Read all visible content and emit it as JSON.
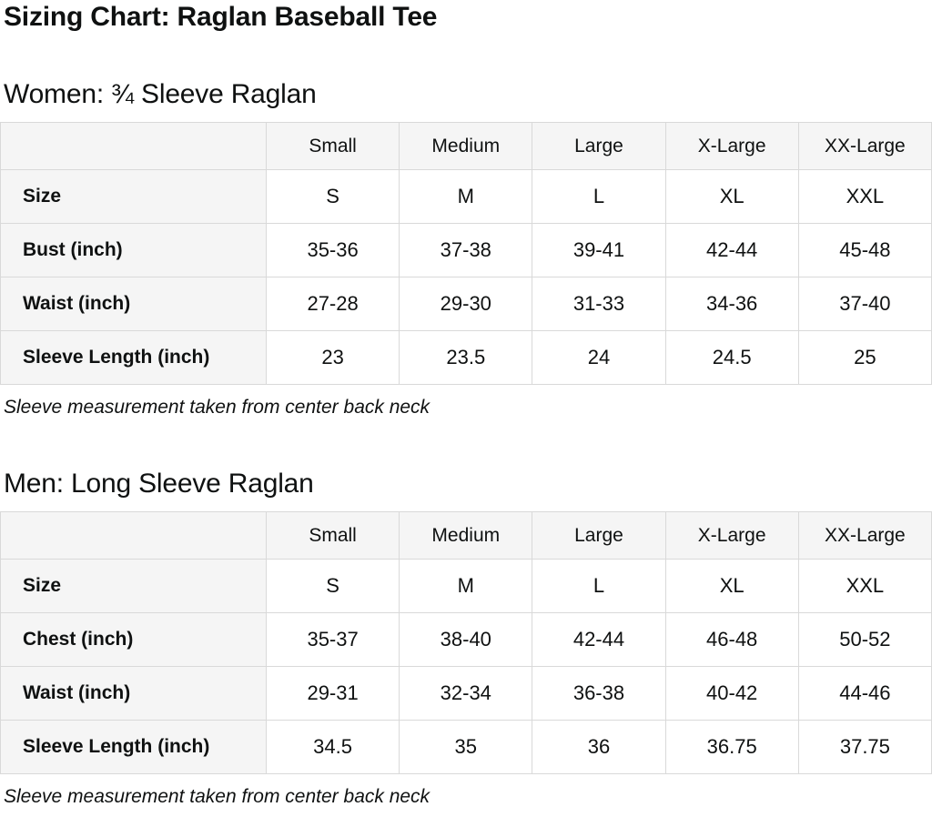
{
  "page": {
    "title": "Sizing Chart: Raglan Baseball Tee"
  },
  "colors": {
    "cell_background": "#f5f5f5",
    "border": "#d9d9d9",
    "text": "#0f1111"
  },
  "sections": [
    {
      "heading": "Women: ¾ Sleeve Raglan",
      "note": "Sleeve measurement taken from center back neck",
      "table": {
        "columns": [
          "",
          "Small",
          "Medium",
          "Large",
          "X-Large",
          "XX-Large"
        ],
        "rows": [
          {
            "label": "Size",
            "values": [
              "S",
              "M",
              "L",
              "XL",
              "XXL"
            ]
          },
          {
            "label": "Bust (inch)",
            "values": [
              "35-36",
              "37-38",
              "39-41",
              "42-44",
              "45-48"
            ]
          },
          {
            "label": "Waist (inch)",
            "values": [
              "27-28",
              "29-30",
              "31-33",
              "34-36",
              "37-40"
            ]
          },
          {
            "label": "Sleeve Length (inch)",
            "values": [
              "23",
              "23.5",
              "24",
              "24.5",
              "25"
            ]
          }
        ]
      }
    },
    {
      "heading": "Men: Long Sleeve Raglan",
      "note": "Sleeve measurement taken from center back neck",
      "table": {
        "columns": [
          "",
          "Small",
          "Medium",
          "Large",
          "X-Large",
          "XX-Large"
        ],
        "rows": [
          {
            "label": "Size",
            "values": [
              "S",
              "M",
              "L",
              "XL",
              "XXL"
            ]
          },
          {
            "label": "Chest (inch)",
            "values": [
              "35-37",
              "38-40",
              "42-44",
              "46-48",
              "50-52"
            ]
          },
          {
            "label": "Waist (inch)",
            "values": [
              "29-31",
              "32-34",
              "36-38",
              "40-42",
              "44-46"
            ]
          },
          {
            "label": "Sleeve Length (inch)",
            "values": [
              "34.5",
              "35",
              "36",
              "36.75",
              "37.75"
            ]
          }
        ]
      }
    }
  ]
}
